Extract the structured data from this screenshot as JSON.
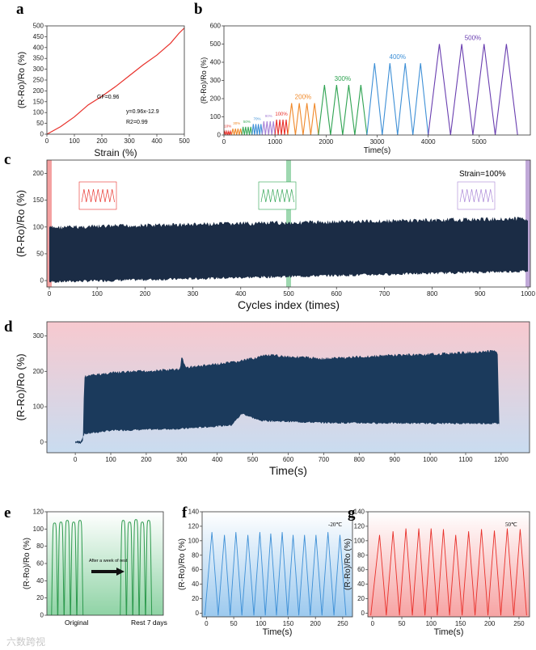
{
  "chart_data": [
    {
      "id": "a",
      "panel_label": "a",
      "type": "line",
      "title": "",
      "xlabel": "Strain (%)",
      "ylabel": "(R-Ro)/Ro (%)",
      "xlim": [
        0,
        500
      ],
      "ylim": [
        0,
        500
      ],
      "xticks": [
        0,
        100,
        200,
        300,
        400,
        500
      ],
      "yticks": [
        0,
        50,
        100,
        150,
        200,
        250,
        300,
        350,
        400,
        450,
        500
      ],
      "annotations": [
        "GF=0.96",
        "y=0.96x-12.9",
        "R2=0.99"
      ],
      "series": [
        {
          "name": "response",
          "color": "#e8302a",
          "x": [
            0,
            50,
            100,
            150,
            200,
            250,
            300,
            350,
            400,
            450,
            480,
            500
          ],
          "y": [
            0,
            35,
            80,
            135,
            175,
            220,
            270,
            320,
            365,
            420,
            465,
            490
          ]
        }
      ]
    },
    {
      "id": "b",
      "panel_label": "b",
      "type": "line",
      "xlabel": "Time(s)",
      "ylabel": "(R-Ro)/Ro (%)",
      "xlim": [
        0,
        6000
      ],
      "ylim": [
        0,
        600
      ],
      "xticks": [
        0,
        1000,
        2000,
        3000,
        4000,
        5000
      ],
      "yticks": [
        0,
        100,
        200,
        300,
        400,
        500,
        600
      ],
      "groups": [
        {
          "label": "10%",
          "start": 0,
          "end": 150,
          "peak": 20,
          "color": "#e8302a"
        },
        {
          "label": "30%",
          "start": 150,
          "end": 350,
          "peak": 35,
          "color": "#f08a2c"
        },
        {
          "label": "50%",
          "start": 350,
          "end": 550,
          "peak": 45,
          "color": "#3aaa5a"
        },
        {
          "label": "70%",
          "start": 550,
          "end": 750,
          "peak": 60,
          "color": "#3d8fd6"
        },
        {
          "label": "90%",
          "start": 750,
          "end": 1000,
          "peak": 75,
          "color": "#a883d6"
        },
        {
          "label": "100%",
          "start": 1000,
          "end": 1250,
          "peak": 85,
          "color": "#e8302a"
        },
        {
          "label": "200%",
          "start": 1250,
          "end": 1850,
          "peak": 175,
          "color": "#f08a2c"
        },
        {
          "label": "300%",
          "start": 1850,
          "end": 2800,
          "peak": 275,
          "color": "#2fa352"
        },
        {
          "label": "400%",
          "start": 2800,
          "end": 4000,
          "peak": 395,
          "color": "#3d8fd6"
        },
        {
          "label": "500%",
          "start": 4000,
          "end": 5750,
          "peak": 500,
          "color": "#6a3fb0"
        }
      ],
      "cycles_per_group": 4
    },
    {
      "id": "c",
      "panel_label": "c",
      "type": "area",
      "xlabel": "Cycles index (times)",
      "ylabel": "(R-Ro)/Ro (%)",
      "xlim": [
        -5,
        1005
      ],
      "ylim": [
        -12,
        225
      ],
      "xticks": [
        0,
        100,
        200,
        300,
        400,
        500,
        600,
        700,
        800,
        900,
        1000
      ],
      "yticks": [
        0,
        50,
        100,
        150,
        200
      ],
      "annotation": "Strain=100%",
      "color": "#1b2c45",
      "upper": [
        [
          0,
          103
        ],
        [
          250,
          108
        ],
        [
          500,
          112
        ],
        [
          750,
          116
        ],
        [
          1000,
          120
        ]
      ],
      "lower": [
        [
          0,
          -5
        ],
        [
          250,
          0
        ],
        [
          500,
          5
        ],
        [
          750,
          10
        ],
        [
          1000,
          15
        ]
      ],
      "highlights": [
        {
          "x": 0,
          "color": "#f4a0a0"
        },
        {
          "x": 500,
          "color": "#9ed8b0"
        },
        {
          "x": 1000,
          "color": "#c0a8d8"
        }
      ]
    },
    {
      "id": "d",
      "panel_label": "d",
      "type": "area",
      "xlabel": "Time(s)",
      "ylabel": "(R-Ro)/Ro (%)",
      "xlim": [
        -80,
        1280
      ],
      "ylim": [
        -30,
        340
      ],
      "xticks": [
        0,
        100,
        200,
        300,
        400,
        500,
        600,
        700,
        800,
        900,
        1000,
        1100,
        1200
      ],
      "yticks": [
        0,
        100,
        200,
        300
      ],
      "color": "#1b3a5c",
      "upper": [
        [
          0,
          0
        ],
        [
          15,
          0
        ],
        [
          22,
          10
        ],
        [
          25,
          190
        ],
        [
          100,
          200
        ],
        [
          200,
          205
        ],
        [
          295,
          210
        ],
        [
          300,
          250
        ],
        [
          310,
          215
        ],
        [
          450,
          230
        ],
        [
          540,
          250
        ],
        [
          700,
          240
        ],
        [
          900,
          250
        ],
        [
          1000,
          252
        ],
        [
          1190,
          262
        ],
        [
          1195,
          50
        ]
      ],
      "lower": [
        [
          0,
          0
        ],
        [
          15,
          0
        ],
        [
          25,
          20
        ],
        [
          100,
          30
        ],
        [
          300,
          35
        ],
        [
          440,
          45
        ],
        [
          470,
          78
        ],
        [
          520,
          58
        ],
        [
          700,
          52
        ],
        [
          1000,
          50
        ],
        [
          1195,
          50
        ]
      ]
    },
    {
      "id": "e",
      "panel_label": "e",
      "type": "line",
      "ylabel": "(R-Ro)/Ro (%)",
      "ylim": [
        0,
        120
      ],
      "yticks": [
        0,
        20,
        40,
        60,
        80,
        100,
        120
      ],
      "xtick_labels": [
        "Original",
        "Rest 7 days"
      ],
      "annotation": "After a week of rest",
      "color": "#2e9a4e",
      "groups": [
        {
          "peaks": [
            107,
            108,
            110,
            108,
            110
          ]
        },
        {
          "peaks": [
            110,
            108,
            111,
            108,
            110
          ]
        }
      ]
    },
    {
      "id": "f",
      "panel_label": "f",
      "type": "line",
      "xlabel": "Time(s)",
      "ylabel": "(R-Ro)/Ro (%)",
      "xlim": [
        -8,
        268
      ],
      "ylim": [
        -5,
        140
      ],
      "xticks": [
        0,
        50,
        100,
        150,
        200,
        250
      ],
      "yticks": [
        0,
        20,
        40,
        60,
        80,
        100,
        120,
        140
      ],
      "annotation": "-20℃",
      "color": "#3d8fd6",
      "fill": "#b9d9f2",
      "peak_x": [
        10,
        33,
        54,
        76,
        98,
        118,
        139,
        159,
        180,
        201,
        223,
        245
      ],
      "peak_y": [
        112,
        108,
        112,
        108,
        112,
        110,
        112,
        108,
        108,
        108,
        112,
        108
      ]
    },
    {
      "id": "g",
      "panel_label": "g",
      "type": "line",
      "xlabel": "Time(s)",
      "ylabel": "(R-Ro)/Ro (%)",
      "xlim": [
        -8,
        268
      ],
      "ylim": [
        -5,
        140
      ],
      "xticks": [
        0,
        50,
        100,
        150,
        200,
        250
      ],
      "yticks": [
        0,
        20,
        40,
        60,
        80,
        100,
        120,
        140
      ],
      "annotation": "50℃",
      "color": "#e8302a",
      "fill": "#f8b9b9",
      "peak_x": [
        12,
        35,
        57,
        79,
        100,
        121,
        142,
        164,
        186,
        208,
        230,
        252
      ],
      "peak_y": [
        108,
        113,
        117,
        117,
        117,
        116,
        108,
        113,
        116,
        114,
        117,
        116
      ]
    }
  ],
  "watermark": "六数跨视"
}
